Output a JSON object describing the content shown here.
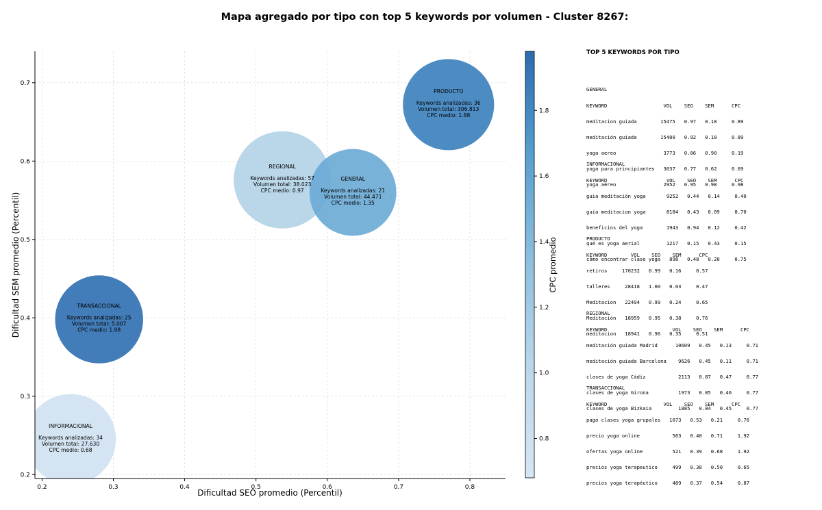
{
  "chart_data": {
    "type": "scatter",
    "title": "Mapa agregado por tipo con top 5 keywords por volumen - Cluster 8267:",
    "xlabel": "Dificultad SEO promedio (Percentil)",
    "ylabel": "Dificultad SEM promedio (Percentil)",
    "xlim": [
      0.19,
      0.85
    ],
    "ylim": [
      0.195,
      0.74
    ],
    "x_ticks": [
      "0.2",
      "0.3",
      "0.4",
      "0.5",
      "0.6",
      "0.7",
      "0.8"
    ],
    "y_ticks": [
      "0.2",
      "0.3",
      "0.4",
      "0.5",
      "0.6",
      "0.7"
    ],
    "grid": true,
    "colorbar": {
      "label": "CPC promedio",
      "range": [
        0.68,
        1.98
      ],
      "ticks": [
        "0.8",
        "1.0",
        "1.2",
        "1.4",
        "1.6",
        "1.8"
      ]
    },
    "points": [
      {
        "name": "PRODUCTO",
        "seo": 0.77,
        "sem": 0.672,
        "keywords": 36,
        "volume": 306813,
        "label_keywords": "Keywords analizadas: 36",
        "label_volume": "Volumen total: 306.813",
        "label_cpc": "CPC medio: 1.88",
        "cpc": 1.88
      },
      {
        "name": "REGIONAL",
        "seo": 0.537,
        "sem": 0.576,
        "keywords": 57,
        "volume": 38023,
        "label_keywords": "Keywords analizadas: 57",
        "label_volume": "Volumen total: 38.023",
        "label_cpc": "CPC medio: 0.97",
        "cpc": 0.97
      },
      {
        "name": "GENERAL",
        "seo": 0.636,
        "sem": 0.56,
        "keywords": 21,
        "volume": 44471,
        "label_keywords": "Keywords analizadas: 21",
        "label_volume": "Volumen total: 44.471",
        "label_cpc": "CPC medio: 1.35",
        "cpc": 1.35
      },
      {
        "name": "TRANSACCIONAL",
        "seo": 0.28,
        "sem": 0.398,
        "keywords": 25,
        "volume": 5007,
        "label_keywords": "Keywords analizadas: 25",
        "label_volume": "Volumen total: 5.007",
        "label_cpc": "CPC medio: 1.98",
        "cpc": 1.98
      },
      {
        "name": "INFORMACIONAL",
        "seo": 0.24,
        "sem": 0.245,
        "keywords": 34,
        "volume": 27630,
        "label_keywords": "Keywords analizadas: 34",
        "label_volume": "Volumen total: 27.630",
        "label_cpc": "CPC medio: 0.68",
        "cpc": 0.68
      }
    ],
    "bubble_colors": {
      "PRODUCTO": "#3a7fbd",
      "REGIONAL": "#b3d1e7",
      "GENERAL": "#6aaad5",
      "TRANSACCIONAL": "#2f6fb1",
      "INFORMACIONAL": "#cfe1f2"
    },
    "bubble_opacity": 0.9
  },
  "panel": {
    "title": "TOP 5 KEYWORDS POR TIPO",
    "blocks": [
      {
        "lines": [
          "GENERAL",
          "KEYWORD                   VOL    SEO    SEM      CPC",
          "meditacion guiada        15475   0.97   0.18     0.89",
          "meditación guiada        15400   0.92   0.18     0.89",
          "yoga aereo                3773   0.86   0.90     0.19",
          "yoga para principiantes   3037   0.77   0.62     0.69",
          "yoga aéreo                2952   0.95   0.98     0.98"
        ]
      },
      {
        "lines": [
          "INFORMACIONAL",
          "KEYWORD                    VOL    SEO    SEM      CPC",
          "guia meditación yoga       9252   0.44   0.14     0.40",
          "guia meditacion yoga       8184   0.43   0.09     0.70",
          "beneficios del yoga        1943   0.94   0.12     0.42",
          "qué es yoga aerial         1217   0.15   0.43     0.15",
          "cómo encontrar clase yoga   898   0.48   0.20     0.75"
        ]
      },
      {
        "lines": [
          "PRODUCTO",
          "KEYWORD        VOL    SEO    SEM      CPC",
          "retiros     170232   0.99   0.16     0.57",
          "talleres     28418   1.00   0.03     0.47",
          "Meditacion   22494   0.99   0.24     0.65",
          "Meditación   18959   0.95   0.38     0.76",
          "meditacion   18941   0.96   0.35     0.51"
        ]
      },
      {
        "lines": [
          "REGIONAL",
          "KEYWORD                      VOL    SEO    SEM      CPC",
          "meditación guiada Madrid      10609   0.45   0.13     0.71",
          "meditación guiada Barcelona    9626   0.45   0.11     0.71",
          "clases de yoga Cádiz           2113   0.87   0.47     0.77",
          "clases de yoga Girona          1973   0.85   0.46     0.77",
          "clases de yoga Bizkaia         1885   0.84   0.45     0.77"
        ]
      },
      {
        "lines": [
          "TRANSACCIONAL",
          "KEYWORD                   VOL    SEO    SEM      CPC",
          "pago clases yoga grupales   1073   0.53   0.21     0.76",
          "precio yoga online           563   0.40   0.71     1.92",
          "ofertas yoga online          521   0.39   0.68     1.92",
          "precios yoga terapeutico     499   0.38   0.50     0.65",
          "precios yoga terapéutico     489   0.37   0.54     0.87"
        ]
      }
    ]
  }
}
